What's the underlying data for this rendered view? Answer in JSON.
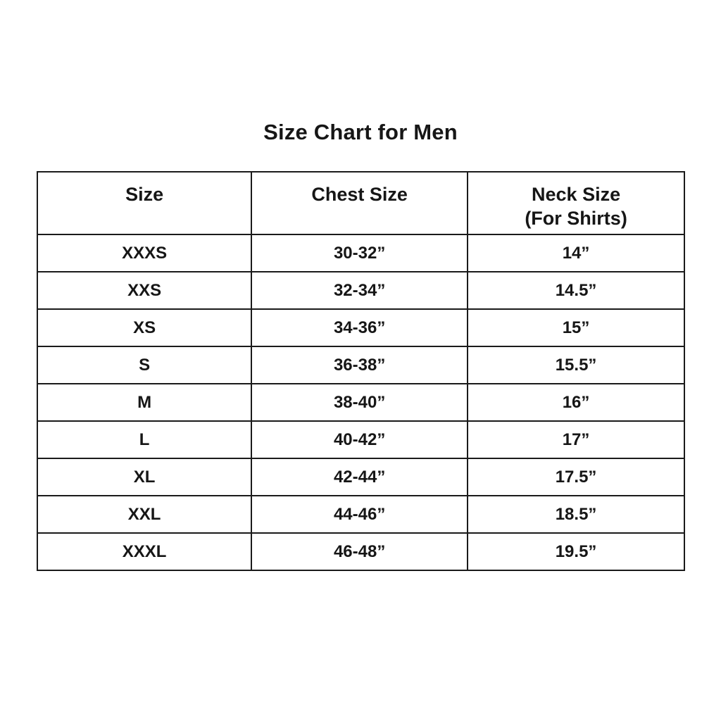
{
  "page": {
    "title": "Size Chart for Men"
  },
  "chart_data": {
    "type": "table",
    "title": "Size Chart for Men",
    "columns": [
      "Size",
      "Chest Size",
      "Neck Size (For Shirts)"
    ],
    "rows": [
      [
        "XXXS",
        "30-32”",
        "14”"
      ],
      [
        "XXS",
        "32-34”",
        "14.5”"
      ],
      [
        "XS",
        "34-36”",
        "15”"
      ],
      [
        "S",
        "36-38”",
        "15.5”"
      ],
      [
        "M",
        "38-40”",
        "16”"
      ],
      [
        "L",
        "40-42”",
        "17”"
      ],
      [
        "XL",
        "42-44”",
        "17.5”"
      ],
      [
        "XXL",
        "44-46”",
        "18.5”"
      ],
      [
        "XXXL",
        "46-48”",
        "19.5”"
      ]
    ]
  },
  "table": {
    "headers": [
      {
        "label": "Size",
        "sub": ""
      },
      {
        "label": "Chest Size",
        "sub": ""
      },
      {
        "label": "Neck Size",
        "sub": "(For Shirts)"
      }
    ],
    "rows": [
      {
        "size": "XXXS",
        "chest": "30-32”",
        "neck": "14”"
      },
      {
        "size": "XXS",
        "chest": "32-34”",
        "neck": "14.5”"
      },
      {
        "size": "XS",
        "chest": "34-36”",
        "neck": "15”"
      },
      {
        "size": "S",
        "chest": "36-38”",
        "neck": "15.5”"
      },
      {
        "size": "M",
        "chest": "38-40”",
        "neck": "16”"
      },
      {
        "size": "L",
        "chest": "40-42”",
        "neck": "17”"
      },
      {
        "size": "XL",
        "chest": "42-44”",
        "neck": "17.5”"
      },
      {
        "size": "XXL",
        "chest": "44-46”",
        "neck": "18.5”"
      },
      {
        "size": "XXXL",
        "chest": "46-48”",
        "neck": "19.5”"
      }
    ]
  }
}
